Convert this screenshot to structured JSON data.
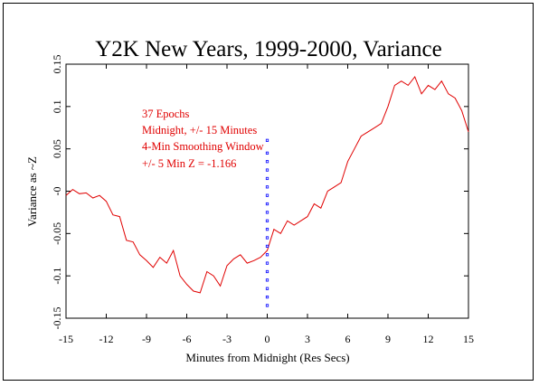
{
  "chart_data": {
    "type": "line",
    "title": "Y2K New Years, 1999-2000, Variance",
    "xlabel": "Minutes from Midnight (Res Secs)",
    "ylabel": "Variance as ~Z",
    "xlim": [
      -15,
      15
    ],
    "ylim": [
      -0.15,
      0.15
    ],
    "x_ticks": [
      -15,
      -12,
      -9,
      -6,
      -3,
      0,
      3,
      6,
      9,
      12,
      15
    ],
    "x_tick_labels": [
      "-15",
      "-12",
      "-9",
      "-6",
      "-3",
      "0",
      "3",
      "6",
      "9",
      "12",
      "15"
    ],
    "y_ticks": [
      -0.15,
      -0.1,
      -0.05,
      0,
      0.05,
      0.1,
      0.15
    ],
    "y_tick_labels": [
      "-0.15",
      "-0.1",
      "-0.05",
      "-0",
      "0.05",
      "0.1",
      "0.15"
    ],
    "grid": false,
    "annotations": [
      "37 Epochs",
      "Midnight, +/- 15 Minutes",
      "4-Min Smoothing Window",
      "+/- 5 Min Z = -1.166"
    ],
    "series": [
      {
        "color": "#e00000",
        "style": "solid",
        "x": [
          -15,
          -14.5,
          -14,
          -13.5,
          -13,
          -12.5,
          -12,
          -11.5,
          -11,
          -10.5,
          -10,
          -9.5,
          -9,
          -8.5,
          -8,
          -7.5,
          -7,
          -6.5,
          -6,
          -5.5,
          -5,
          -4.5,
          -4,
          -3.5,
          -3,
          -2.5,
          -2,
          -1.5,
          -1,
          -0.5,
          0,
          0.5,
          1,
          1.5,
          2,
          2.5,
          3,
          3.5,
          4,
          4.5,
          5,
          5.5,
          6,
          6.5,
          7,
          7.5,
          8,
          8.5,
          9,
          9.5,
          10,
          10.5,
          11,
          11.5,
          12,
          12.5,
          13,
          13.5,
          14,
          14.5,
          15
        ],
        "y": [
          -0.005,
          0.002,
          -0.003,
          -0.002,
          -0.008,
          -0.005,
          -0.012,
          -0.028,
          -0.03,
          -0.058,
          -0.06,
          -0.075,
          -0.082,
          -0.09,
          -0.078,
          -0.085,
          -0.07,
          -0.1,
          -0.11,
          -0.118,
          -0.12,
          -0.095,
          -0.1,
          -0.112,
          -0.088,
          -0.08,
          -0.075,
          -0.085,
          -0.082,
          -0.078,
          -0.07,
          -0.045,
          -0.05,
          -0.035,
          -0.04,
          -0.035,
          -0.03,
          -0.015,
          -0.02,
          0.0,
          0.005,
          0.01,
          0.035,
          0.05,
          0.065,
          0.07,
          0.075,
          0.08,
          0.1,
          0.125,
          0.13,
          0.125,
          0.135,
          0.115,
          0.125,
          0.12,
          0.13,
          0.115,
          0.11,
          0.095,
          0.07
        ]
      },
      {
        "color": "#0000ff",
        "style": "dotted",
        "x": [
          0,
          0,
          0,
          0,
          0,
          0,
          0,
          0,
          0,
          0,
          0,
          0,
          0,
          0,
          0,
          0,
          0,
          0,
          0,
          0
        ],
        "y": [
          -0.135,
          -0.125,
          -0.115,
          -0.105,
          -0.095,
          -0.085,
          -0.075,
          -0.065,
          -0.055,
          -0.045,
          -0.035,
          -0.025,
          -0.015,
          -0.005,
          0.005,
          0.015,
          0.025,
          0.035,
          0.045,
          0.06
        ]
      }
    ]
  }
}
